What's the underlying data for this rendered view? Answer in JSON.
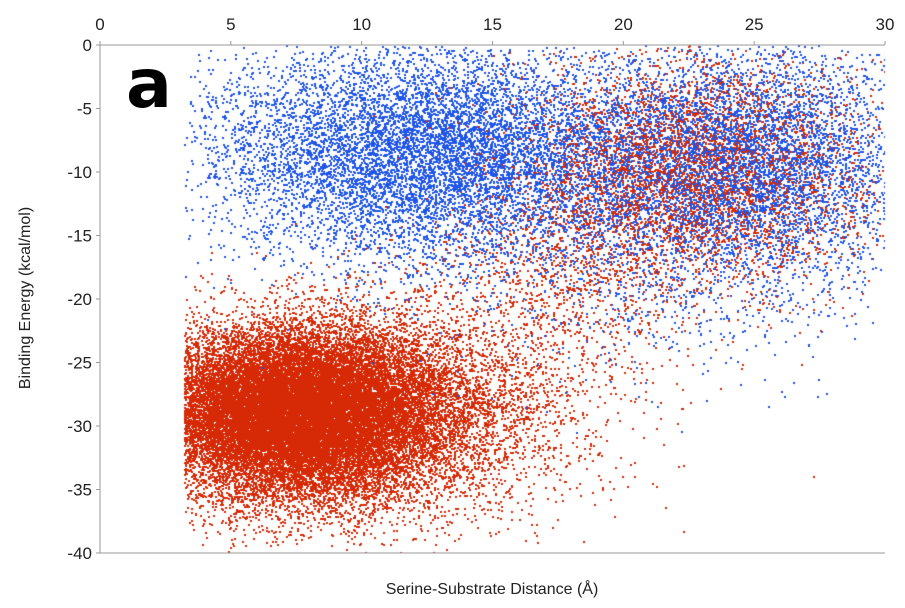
{
  "chart_data": {
    "type": "scatter",
    "panel_label": "a",
    "xlabel": "Serine-Substrate Distance (Å)",
    "ylabel": "Binding Energy (kcal/mol)",
    "xlim": [
      0,
      30
    ],
    "ylim": [
      -40,
      0
    ],
    "x_axis_position": "top",
    "x_ticks": [
      0,
      5,
      10,
      15,
      20,
      25,
      30
    ],
    "y_ticks": [
      0,
      -5,
      -10,
      -15,
      -20,
      -25,
      -30,
      -35,
      -40
    ],
    "grid": false,
    "legend": "none",
    "series": [
      {
        "color": "#1f55e8",
        "clusters": [
          {
            "x_mean": 12.5,
            "x_sd": 4.3,
            "y_mean": -8.5,
            "y_sd": 4.2,
            "count": 9000
          },
          {
            "x_mean": 24.5,
            "x_sd": 3.3,
            "y_mean": -9.0,
            "y_sd": 4.5,
            "count": 5500
          },
          {
            "x_mean": 21.0,
            "x_sd": 4.5,
            "y_mean": -17.0,
            "y_sd": 4.5,
            "count": 900
          }
        ]
      },
      {
        "color": "#d62a06",
        "clusters": [
          {
            "x_mean": 7.5,
            "x_sd": 2.8,
            "y_mean": -29.0,
            "y_sd": 3.3,
            "count": 26000
          },
          {
            "x_mean": 11.5,
            "x_sd": 3.8,
            "y_mean": -28.5,
            "y_sd": 4.2,
            "count": 4500
          },
          {
            "x_mean": 22.5,
            "x_sd": 3.5,
            "y_mean": -10.0,
            "y_sd": 4.5,
            "count": 3000
          },
          {
            "x_mean": 17.5,
            "x_sd": 2.8,
            "y_mean": -18.0,
            "y_sd": 4.0,
            "count": 900
          }
        ]
      }
    ]
  }
}
